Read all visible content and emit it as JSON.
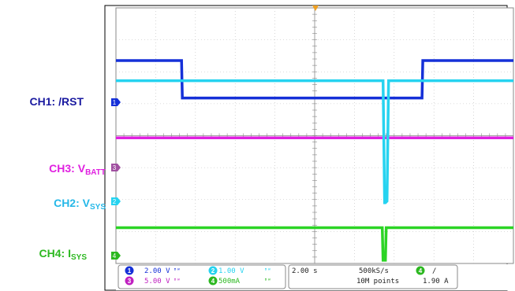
{
  "chart_data": {
    "type": "line",
    "title": "",
    "x_unit": "s",
    "x_divisions": 10,
    "y_divisions": 8,
    "grid": true,
    "timebase_per_div": "2.00 s",
    "sample_rate": "500kS/s",
    "record_length": "10M points",
    "trigger": {
      "channel": "4",
      "slope": "rising",
      "level": "1.90 A"
    },
    "series": [
      {
        "name": "CH1: /RST",
        "color": "#1530d8",
        "scale": "2.00 V",
        "x": [
          0,
          1.65,
          1.67,
          7.7,
          7.72,
          10
        ],
        "y_div": [
          6.35,
          6.35,
          5.18,
          5.18,
          6.35,
          6.35
        ]
      },
      {
        "name": "CH2: Vsys",
        "color": "#26d3f0",
        "scale": "1.00 V",
        "x": [
          0,
          6.72,
          6.76,
          6.78,
          6.82,
          6.86,
          10
        ],
        "y_div": [
          5.72,
          5.72,
          1.9,
          1.9,
          1.95,
          5.72,
          5.72
        ]
      },
      {
        "name": "CH3: VBATT",
        "color": "#e020e0",
        "scale": "5.00 V",
        "x": [
          0,
          10
        ],
        "y_div": [
          3.93,
          3.93
        ]
      },
      {
        "name": "CH4: Isys",
        "color": "#2cd425",
        "scale": "500mA",
        "x": [
          0,
          6.7,
          6.72,
          6.78,
          6.8,
          10
        ],
        "y_div": [
          1.12,
          1.12,
          0.1,
          0.1,
          1.12,
          1.12
        ]
      }
    ]
  },
  "labels": {
    "ch1": {
      "name": "CH1: /RST",
      "color": "#1a1aa0"
    },
    "ch3": {
      "main": "CH3: V",
      "sub": "BATT",
      "color": "#e020e0"
    },
    "ch2": {
      "main": "CH2: V",
      "sub": "SYS",
      "color": "#26b8e8"
    },
    "ch4": {
      "main": "CH4: I",
      "sub": "SYS",
      "color": "#2cb820"
    }
  },
  "status_bar": {
    "ch1": {
      "num": "1",
      "value": "2.00 V",
      "color": "#1530d8"
    },
    "ch3": {
      "num": "3",
      "value": "5.00 V",
      "color": "#c020c0"
    },
    "ch2": {
      "num": "2",
      "value": "1.00 V",
      "color": "#26d3f0"
    },
    "ch4": {
      "num": "4",
      "value": "500mA",
      "color": "#2cb820"
    },
    "bw": "ᴮᵂ",
    "timebase": "2.00 s",
    "sample_rate": "500kS/s",
    "record_length": "10M points",
    "trig_num": "4",
    "trig_slope": "/",
    "trig_level": "1.90 A"
  }
}
